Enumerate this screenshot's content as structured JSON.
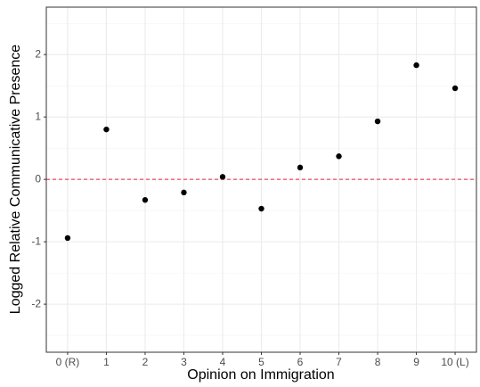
{
  "chart_data": {
    "type": "scatter",
    "categories": [
      "0 (R)",
      "1",
      "2",
      "3",
      "4",
      "5",
      "6",
      "7",
      "8",
      "9",
      "10 (L)"
    ],
    "values": [
      -0.94,
      0.8,
      -0.33,
      -0.21,
      0.04,
      -0.47,
      0.19,
      0.37,
      0.93,
      1.83,
      1.46
    ],
    "color": "#000000",
    "x_label": "Opinion on Immigration",
    "y_label": "Logged Relative Communicative Presence",
    "ylim": [
      -2.77,
      2.76
    ],
    "yticks": [
      -2,
      -1,
      0,
      1,
      2
    ],
    "grid": true,
    "minor_grid": true,
    "hline": {
      "value": 0,
      "color": "#e0283a"
    }
  }
}
